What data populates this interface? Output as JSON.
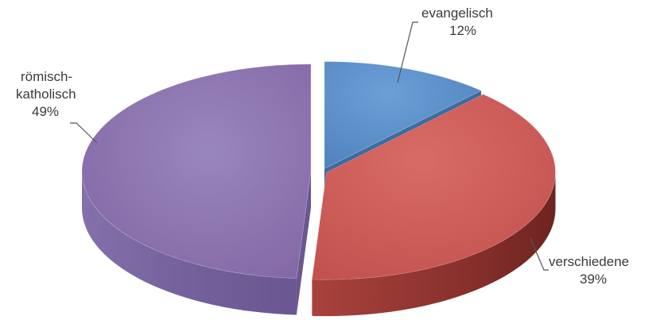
{
  "chart_data": {
    "type": "pie",
    "style": "3d-exploded",
    "slices": [
      {
        "label": "evangelisch",
        "value": 12,
        "value_label": "12%",
        "color": "#5b8fc9",
        "side_color": "#3d6a9f"
      },
      {
        "label": "verschiedene",
        "value": 39,
        "value_label": "39%",
        "color": "#cd5f5b",
        "side_color": "#8c3431"
      },
      {
        "label": "römisch-katholisch",
        "label_lines": [
          "römisch-",
          "katholisch"
        ],
        "value": 49,
        "value_label": "49%",
        "color": "#8e79b3",
        "side_color": "#6b5790"
      }
    ]
  }
}
